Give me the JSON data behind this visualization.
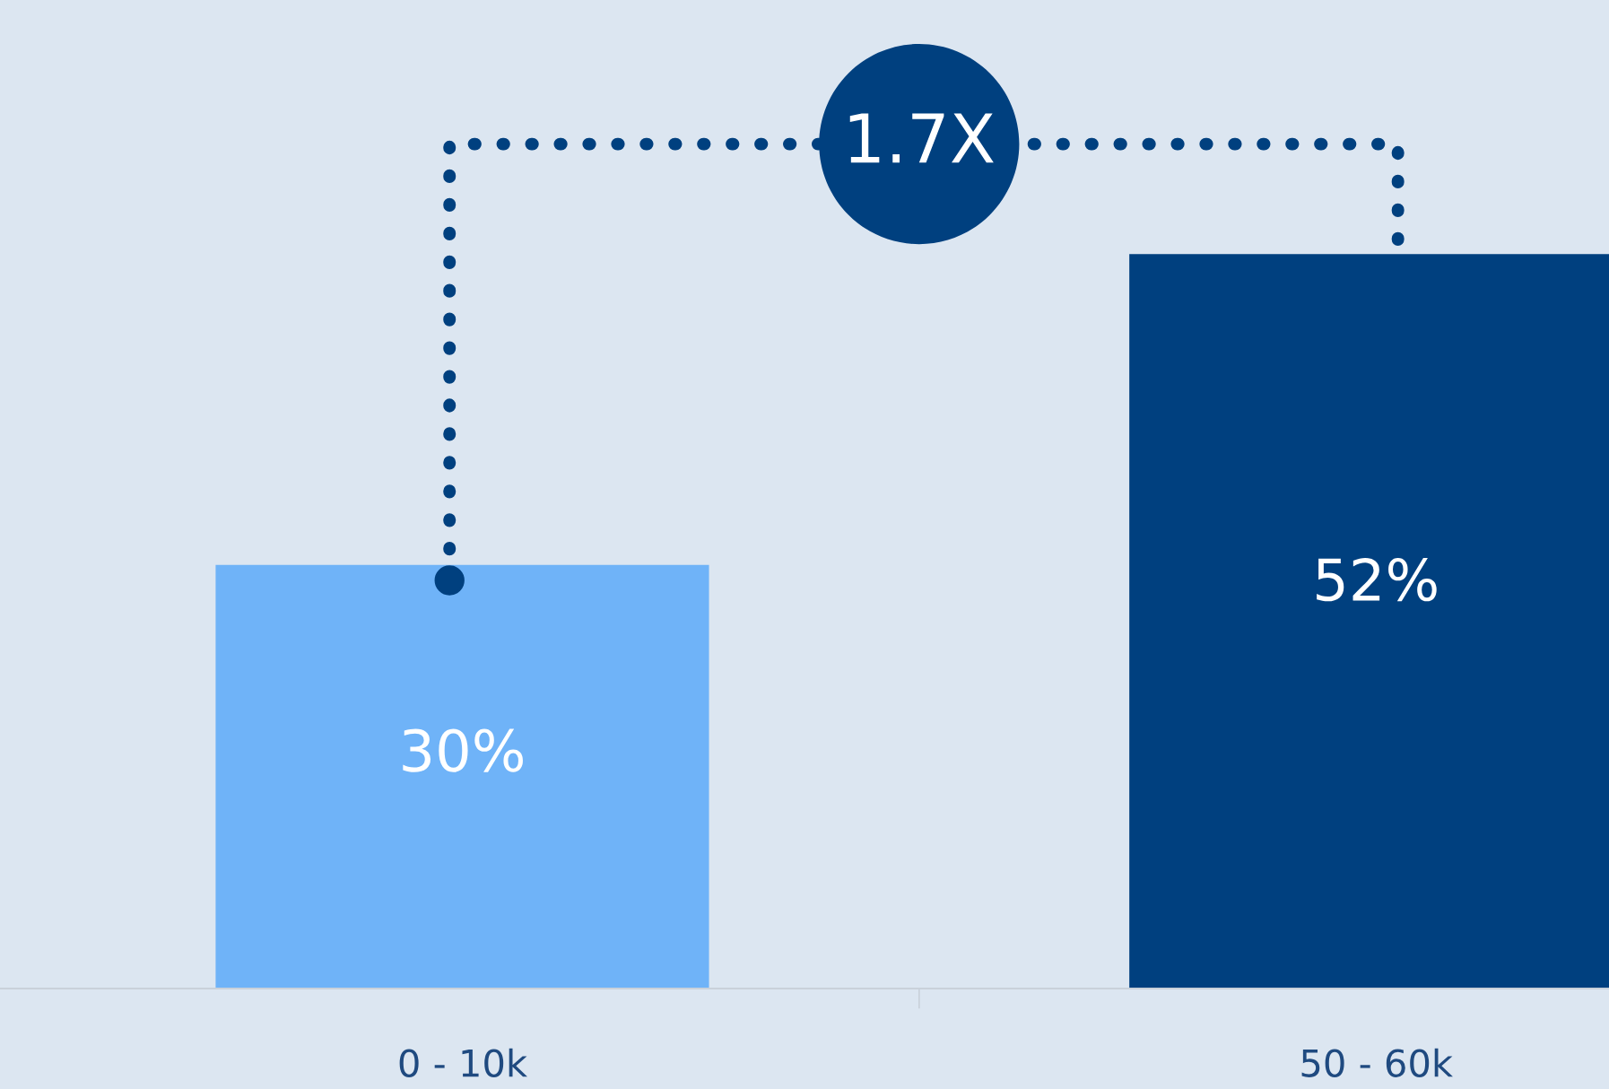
{
  "chart_data": {
    "type": "bar",
    "categories": [
      "0 - 10k",
      "50 - 60k"
    ],
    "values": [
      30,
      52
    ],
    "colors": [
      "#6fb3f8",
      "#00407f"
    ],
    "value_labels": [
      "30%",
      "52%"
    ],
    "ylim": [
      0,
      70
    ],
    "tick_labels": "x",
    "grid": false,
    "annotations": [
      "1.7X"
    ]
  }
}
